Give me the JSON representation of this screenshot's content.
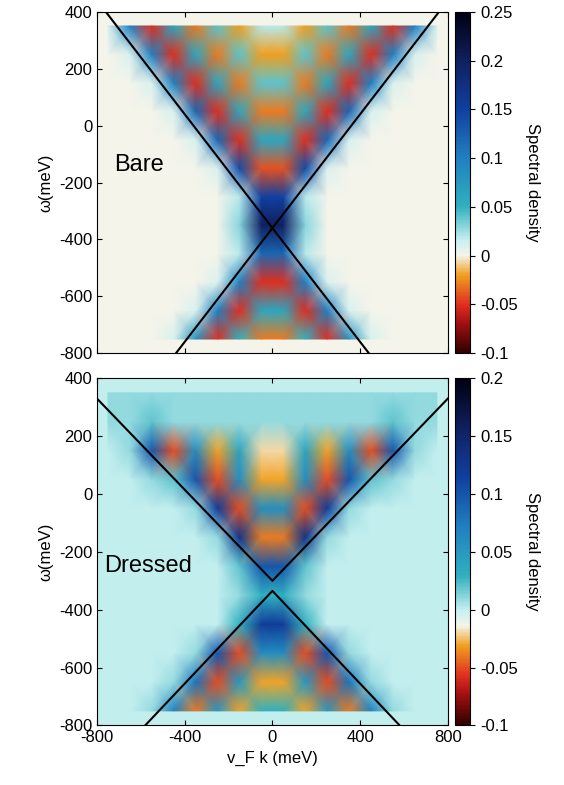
{
  "chart_data": [
    {
      "type": "heatmap",
      "annotation": "Bare",
      "ylabel": "ω(meV)",
      "tick_labels": "y",
      "xlim": [
        -800,
        800
      ],
      "ylim": [
        -800,
        400
      ],
      "xticks": [
        -800,
        -400,
        0,
        400,
        800
      ],
      "yticks": [
        -800,
        -600,
        -400,
        -200,
        0,
        200,
        400
      ],
      "colorbar": {
        "label": "Spectral density",
        "range": [
          -0.1,
          0.25
        ],
        "ticks": [
          -0.1,
          -0.05,
          0,
          0.05,
          0.1,
          0.15,
          0.2,
          0.25
        ]
      },
      "x": [
        -750,
        -650,
        -550,
        -450,
        -350,
        -250,
        -150,
        -50,
        50,
        150,
        250,
        350,
        450,
        550,
        650,
        750
      ],
      "y": [
        -750,
        -650,
        -550,
        -450,
        -350,
        -250,
        -150,
        -50,
        50,
        150,
        250,
        350
      ],
      "z": [
        [
          0,
          0,
          0,
          0.01,
          0.08,
          -0.05,
          0.05,
          -0.03,
          -0.03,
          0.05,
          -0.05,
          0.08,
          0.01,
          0,
          0,
          0
        ],
        [
          0,
          0,
          0,
          0,
          0.01,
          0.1,
          -0.05,
          0.06,
          0.06,
          -0.05,
          0.1,
          0.01,
          0,
          0,
          0,
          0
        ],
        [
          0,
          0,
          0,
          0,
          0,
          0.01,
          0.1,
          -0.05,
          -0.05,
          0.1,
          0.01,
          0,
          0,
          0,
          0,
          0
        ],
        [
          0,
          0,
          0,
          0,
          0,
          0,
          0.02,
          0.12,
          0.12,
          0.02,
          0,
          0,
          0,
          0,
          0,
          0
        ],
        [
          0,
          0,
          0,
          0,
          0,
          0,
          0.03,
          0.2,
          0.2,
          0.03,
          0,
          0,
          0,
          0,
          0,
          0
        ],
        [
          0,
          0,
          0,
          0,
          0,
          0,
          0.02,
          0.15,
          0.15,
          0.02,
          0,
          0,
          0,
          0,
          0,
          0
        ],
        [
          0,
          0,
          0,
          0,
          0,
          0.01,
          0.14,
          -0.04,
          -0.04,
          0.14,
          0.01,
          0,
          0,
          0,
          0,
          0
        ],
        [
          0,
          0,
          0,
          0,
          0.01,
          0.12,
          -0.05,
          0.06,
          0.06,
          -0.05,
          0.12,
          0.01,
          0,
          0,
          0,
          0
        ],
        [
          0,
          0,
          0,
          0.01,
          0.12,
          -0.05,
          0.06,
          -0.03,
          -0.03,
          0.06,
          -0.05,
          0.12,
          0.01,
          0,
          0,
          0
        ],
        [
          0,
          0,
          0.01,
          0.1,
          -0.05,
          0.06,
          -0.03,
          0.04,
          0.04,
          -0.03,
          0.06,
          -0.05,
          0.1,
          0.01,
          0,
          0
        ],
        [
          0,
          0.01,
          0.1,
          -0.05,
          0.06,
          -0.03,
          0.04,
          -0.02,
          -0.02,
          0.04,
          -0.03,
          0.06,
          -0.05,
          0.1,
          0.01,
          0
        ],
        [
          0.01,
          0.1,
          -0.05,
          0.06,
          -0.03,
          0.04,
          -0.02,
          0.02,
          0.02,
          -0.02,
          0.04,
          -0.03,
          0.06,
          -0.05,
          0.1,
          0.01
        ]
      ],
      "lines": [
        {
          "x": [
            -760,
            440
          ],
          "y": [
            400,
            -800
          ],
          "color": "#000000"
        },
        {
          "x": [
            -440,
            760
          ],
          "y": [
            -800,
            400
          ],
          "color": "#000000"
        }
      ]
    },
    {
      "type": "heatmap",
      "annotation": "Dressed",
      "ylabel": "ω(meV)",
      "xlabel": "v_F k (meV)",
      "xlim": [
        -800,
        800
      ],
      "ylim": [
        -800,
        400
      ],
      "xticks": [
        -800,
        -400,
        0,
        400,
        800
      ],
      "yticks": [
        -800,
        -600,
        -400,
        -200,
        0,
        200,
        400
      ],
      "colorbar": {
        "label": "Spectral density",
        "range": [
          -0.1,
          0.2
        ],
        "ticks": [
          -0.1,
          -0.05,
          0,
          0.05,
          0.1,
          0.15,
          0.2
        ]
      },
      "x": [
        -750,
        -650,
        -550,
        -450,
        -350,
        -250,
        -150,
        -50,
        50,
        150,
        250,
        350,
        450,
        550,
        650,
        750
      ],
      "y": [
        -750,
        -650,
        -550,
        -450,
        -350,
        -250,
        -150,
        -50,
        50,
        150,
        250,
        350
      ],
      "z": [
        [
          0,
          0,
          0.01,
          0.07,
          -0.04,
          0.05,
          -0.03,
          0.03,
          0.03,
          -0.03,
          0.05,
          -0.04,
          0.07,
          0.01,
          0,
          0
        ],
        [
          0,
          0,
          0,
          0.01,
          0.08,
          -0.05,
          0.05,
          -0.03,
          -0.03,
          0.05,
          -0.05,
          0.08,
          0.01,
          0,
          0,
          0
        ],
        [
          0,
          0,
          0,
          0,
          0.01,
          0.1,
          -0.05,
          0.06,
          0.06,
          -0.05,
          0.1,
          0.01,
          0,
          0,
          0,
          0
        ],
        [
          0,
          0,
          0,
          0,
          0,
          0,
          0.03,
          0.12,
          0.12,
          0.03,
          0,
          0,
          0,
          0,
          0,
          0
        ],
        [
          0,
          0,
          0,
          0,
          0,
          0,
          0.01,
          0.03,
          0.03,
          0.01,
          0,
          0,
          0,
          0,
          0,
          0
        ],
        [
          0,
          0,
          0,
          0,
          0,
          0,
          0.02,
          0.1,
          0.1,
          0.02,
          0,
          0,
          0,
          0,
          0,
          0
        ],
        [
          0,
          0,
          0,
          0,
          0,
          0.01,
          0.13,
          -0.04,
          -0.04,
          0.13,
          0.01,
          0,
          0,
          0,
          0,
          0
        ],
        [
          0,
          0,
          0,
          0,
          0.01,
          0.12,
          -0.05,
          0.06,
          0.06,
          -0.05,
          0.12,
          0.01,
          0,
          0,
          0,
          0
        ],
        [
          0,
          0,
          0.01,
          0.02,
          0.1,
          -0.05,
          0.06,
          -0.03,
          -0.03,
          0.06,
          -0.05,
          0.1,
          0.02,
          0.01,
          0,
          0
        ],
        [
          0,
          0.01,
          0.1,
          -0.05,
          0.06,
          -0.03,
          0.04,
          -0.02,
          -0.02,
          0.04,
          -0.03,
          0.06,
          -0.05,
          0.1,
          0.01,
          0
        ],
        [
          0.01,
          0.01,
          0.02,
          0.01,
          0.01,
          0.01,
          0.01,
          0.01,
          0.01,
          0.01,
          0.01,
          0.01,
          0.01,
          0.02,
          0.01,
          0.01
        ],
        [
          0.01,
          0.01,
          0.01,
          0.01,
          0.01,
          0.01,
          0.01,
          0.01,
          0.01,
          0.01,
          0.01,
          0.01,
          0.01,
          0.01,
          0.01,
          0.01
        ]
      ],
      "lines": [
        {
          "x": [
            -800,
            0,
            800
          ],
          "y": [
            330,
            -300,
            330
          ],
          "color": "#000000"
        },
        {
          "x": [
            -580,
            0,
            580
          ],
          "y": [
            -800,
            -335,
            -800
          ],
          "color": "#000000"
        }
      ]
    }
  ]
}
